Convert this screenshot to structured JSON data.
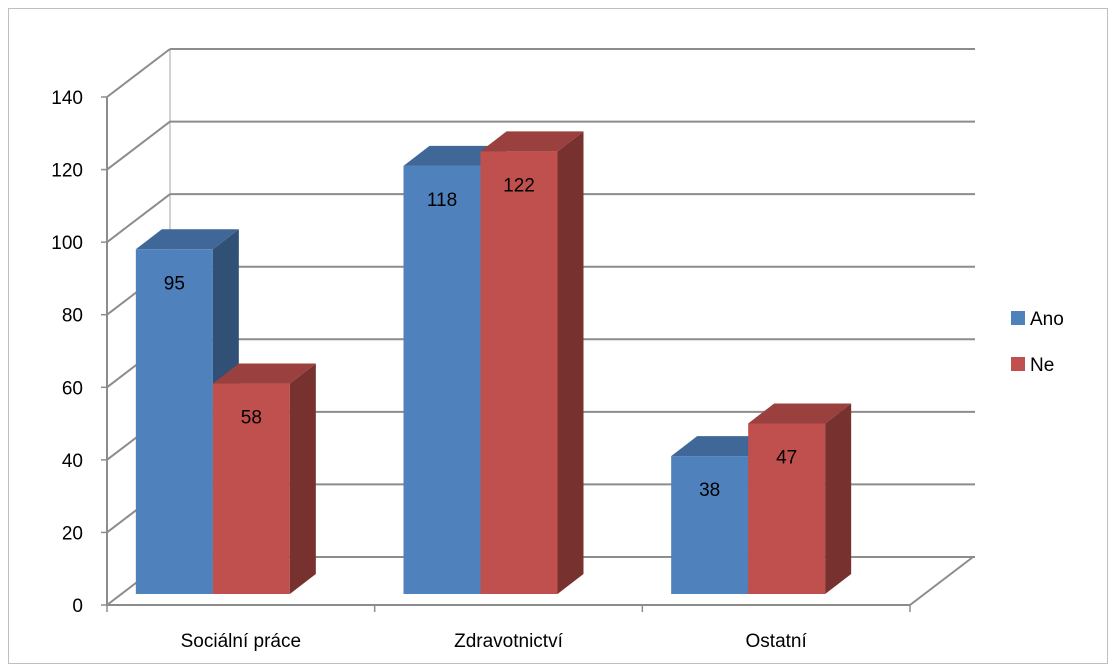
{
  "chart_data": {
    "type": "bar",
    "title": "",
    "xlabel": "",
    "ylabel": "",
    "categories": [
      "Sociální práce",
      "Zdravotnictví",
      "Ostatní"
    ],
    "series": [
      {
        "name": "Ano",
        "values": [
          95,
          118,
          38
        ],
        "color": "#4F81BD"
      },
      {
        "name": "Ne",
        "values": [
          58,
          122,
          47
        ],
        "color": "#C0504D"
      }
    ],
    "ylim": [
      0,
      140
    ],
    "yticks": [
      0,
      20,
      40,
      60,
      80,
      100,
      120,
      140
    ],
    "grid": true,
    "legend_position": "right",
    "style": "3d-clustered-column",
    "data_labels": true
  }
}
